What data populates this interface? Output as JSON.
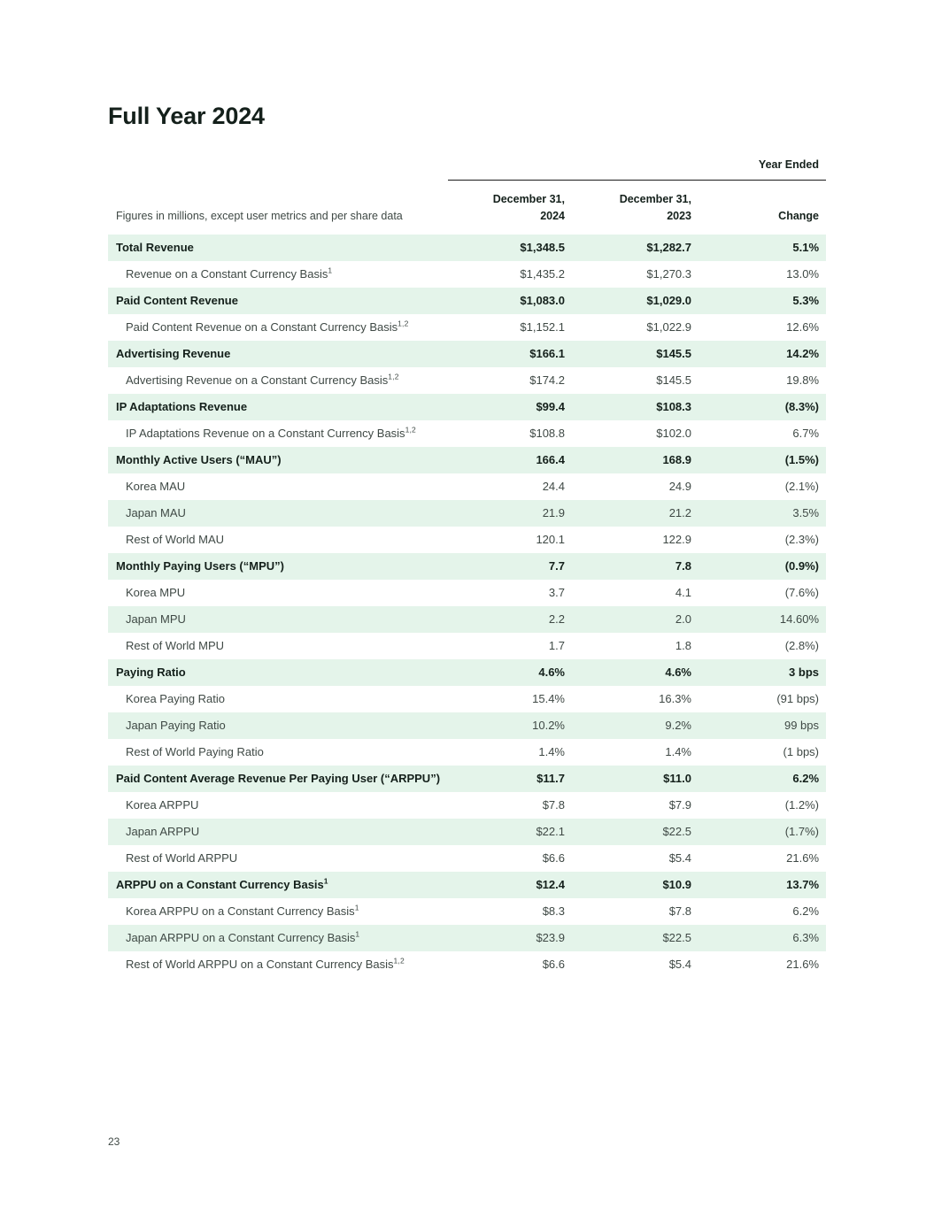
{
  "page": {
    "title": "Full Year 2024",
    "page_number": "23"
  },
  "table": {
    "year_ended_label": "Year Ended",
    "description": "Figures in millions, except user metrics and per share data",
    "columns": {
      "col_2024_line1": "December 31,",
      "col_2024_line2": "2024",
      "col_2023_line1": "December 31,",
      "col_2023_line2": "2023",
      "change": "Change"
    },
    "colors": {
      "row_shade": "#e4f4ea",
      "text_dark": "#14201b",
      "text_body": "#3f4945",
      "rule": "#1a1a1a"
    },
    "rows": [
      {
        "label": "Total Revenue",
        "sup": "",
        "v2024": "$1,348.5",
        "v2023": "$1,282.7",
        "change": "5.1%",
        "bold": true
      },
      {
        "label": "Revenue on a Constant Currency Basis",
        "sup": "1",
        "v2024": "$1,435.2",
        "v2023": "$1,270.3",
        "change": "13.0%",
        "bold": false
      },
      {
        "label": "Paid Content Revenue",
        "sup": "",
        "v2024": "$1,083.0",
        "v2023": "$1,029.0",
        "change": "5.3%",
        "bold": true
      },
      {
        "label": "Paid Content Revenue on a Constant Currency Basis",
        "sup": "1,2",
        "v2024": "$1,152.1",
        "v2023": "$1,022.9",
        "change": "12.6%",
        "bold": false
      },
      {
        "label": "Advertising Revenue",
        "sup": "",
        "v2024": "$166.1",
        "v2023": "$145.5",
        "change": "14.2%",
        "bold": true
      },
      {
        "label": "Advertising Revenue on a Constant Currency Basis",
        "sup": "1,2",
        "v2024": "$174.2",
        "v2023": "$145.5",
        "change": "19.8%",
        "bold": false
      },
      {
        "label": "IP Adaptations Revenue",
        "sup": "",
        "v2024": "$99.4",
        "v2023": "$108.3",
        "change": "(8.3%)",
        "bold": true
      },
      {
        "label": "IP Adaptations Revenue on a Constant Currency Basis",
        "sup": "1,2",
        "v2024": "$108.8",
        "v2023": "$102.0",
        "change": "6.7%",
        "bold": false
      },
      {
        "label": "Monthly Active Users (“MAU”)",
        "sup": "",
        "v2024": "166.4",
        "v2023": "168.9",
        "change": "(1.5%)",
        "bold": true
      },
      {
        "label": "Korea MAU",
        "sup": "",
        "v2024": "24.4",
        "v2023": "24.9",
        "change": "(2.1%)",
        "bold": false
      },
      {
        "label": "Japan MAU",
        "sup": "",
        "v2024": "21.9",
        "v2023": "21.2",
        "change": "3.5%",
        "bold": false
      },
      {
        "label": "Rest of World MAU",
        "sup": "",
        "v2024": "120.1",
        "v2023": "122.9",
        "change": "(2.3%)",
        "bold": false
      },
      {
        "label": "Monthly Paying Users (“MPU”)",
        "sup": "",
        "v2024": "7.7",
        "v2023": "7.8",
        "change": "(0.9%)",
        "bold": true
      },
      {
        "label": "Korea MPU",
        "sup": "",
        "v2024": "3.7",
        "v2023": "4.1",
        "change": "(7.6%)",
        "bold": false
      },
      {
        "label": "Japan MPU",
        "sup": "",
        "v2024": "2.2",
        "v2023": "2.0",
        "change": "14.60%",
        "bold": false
      },
      {
        "label": "Rest of World MPU",
        "sup": "",
        "v2024": "1.7",
        "v2023": "1.8",
        "change": "(2.8%)",
        "bold": false
      },
      {
        "label": "Paying Ratio",
        "sup": "",
        "v2024": "4.6%",
        "v2023": "4.6%",
        "change": "3 bps",
        "bold": true
      },
      {
        "label": "Korea Paying Ratio",
        "sup": "",
        "v2024": "15.4%",
        "v2023": "16.3%",
        "change": "(91 bps)",
        "bold": false
      },
      {
        "label": "Japan Paying Ratio",
        "sup": "",
        "v2024": "10.2%",
        "v2023": "9.2%",
        "change": "99 bps",
        "bold": false
      },
      {
        "label": "Rest of World Paying Ratio",
        "sup": "",
        "v2024": "1.4%",
        "v2023": "1.4%",
        "change": "(1 bps)",
        "bold": false
      },
      {
        "label": "Paid Content Average Revenue Per Paying User (“ARPPU”)",
        "sup": "",
        "v2024": "$11.7",
        "v2023": "$11.0",
        "change": "6.2%",
        "bold": true
      },
      {
        "label": "Korea ARPPU",
        "sup": "",
        "v2024": "$7.8",
        "v2023": "$7.9",
        "change": "(1.2%)",
        "bold": false
      },
      {
        "label": "Japan ARPPU",
        "sup": "",
        "v2024": "$22.1",
        "v2023": "$22.5",
        "change": "(1.7%)",
        "bold": false
      },
      {
        "label": "Rest of World ARPPU",
        "sup": "",
        "v2024": "$6.6",
        "v2023": "$5.4",
        "change": "21.6%",
        "bold": false
      },
      {
        "label": "ARPPU on a Constant Currency Basis",
        "sup": "1",
        "v2024": "$12.4",
        "v2023": "$10.9",
        "change": "13.7%",
        "bold": true
      },
      {
        "label": "Korea ARPPU on a Constant Currency Basis",
        "sup": "1",
        "v2024": "$8.3",
        "v2023": "$7.8",
        "change": "6.2%",
        "bold": false
      },
      {
        "label": "Japan ARPPU on a Constant Currency Basis",
        "sup": "1",
        "v2024": "$23.9",
        "v2023": "$22.5",
        "change": "6.3%",
        "bold": false
      },
      {
        "label": "Rest of World ARPPU on a Constant Currency Basis",
        "sup": "1,2",
        "v2024": "$6.6",
        "v2023": "$5.4",
        "change": "21.6%",
        "bold": false
      }
    ]
  }
}
